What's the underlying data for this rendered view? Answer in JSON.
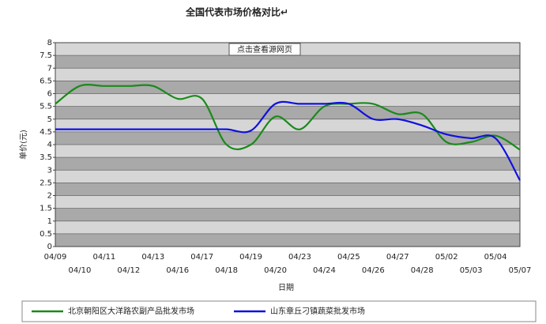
{
  "chart_data": {
    "type": "line",
    "title": "全国代表市场价格对比↵",
    "annotation": "点击查看源网页",
    "x_label": "日期",
    "y_label": "单价(元)",
    "categories": [
      "04/09",
      "04/10",
      "04/11",
      "04/12",
      "04/13",
      "04/16",
      "04/17",
      "04/18",
      "04/19",
      "04/20",
      "04/23",
      "04/24",
      "04/25",
      "04/26",
      "04/27",
      "04/28",
      "05/02",
      "05/03",
      "05/04",
      "05/07"
    ],
    "series": [
      {
        "name": "北京朝阳区大洋路农副产品批发市场",
        "color": "#1a8a1a",
        "values": [
          5.6,
          6.3,
          6.3,
          6.3,
          6.3,
          5.8,
          5.8,
          4.0,
          4.0,
          5.1,
          4.6,
          5.5,
          5.6,
          5.6,
          5.2,
          5.2,
          4.1,
          4.1,
          4.35,
          3.8
        ]
      },
      {
        "name": "山东章丘刁镇蔬菜批发市场",
        "color": "#1010e0",
        "values": [
          4.6,
          4.6,
          4.6,
          4.6,
          4.6,
          4.6,
          4.6,
          4.6,
          4.55,
          5.6,
          5.6,
          5.6,
          5.6,
          5.0,
          5.0,
          4.75,
          4.4,
          4.25,
          4.25,
          2.6
        ]
      }
    ],
    "ylim": [
      0,
      8
    ],
    "yticks": [
      0,
      0.5,
      1,
      1.5,
      2,
      2.5,
      3,
      3.5,
      4,
      4.5,
      5,
      5.5,
      6,
      6.5,
      7,
      7.5,
      8
    ],
    "grid": true
  }
}
